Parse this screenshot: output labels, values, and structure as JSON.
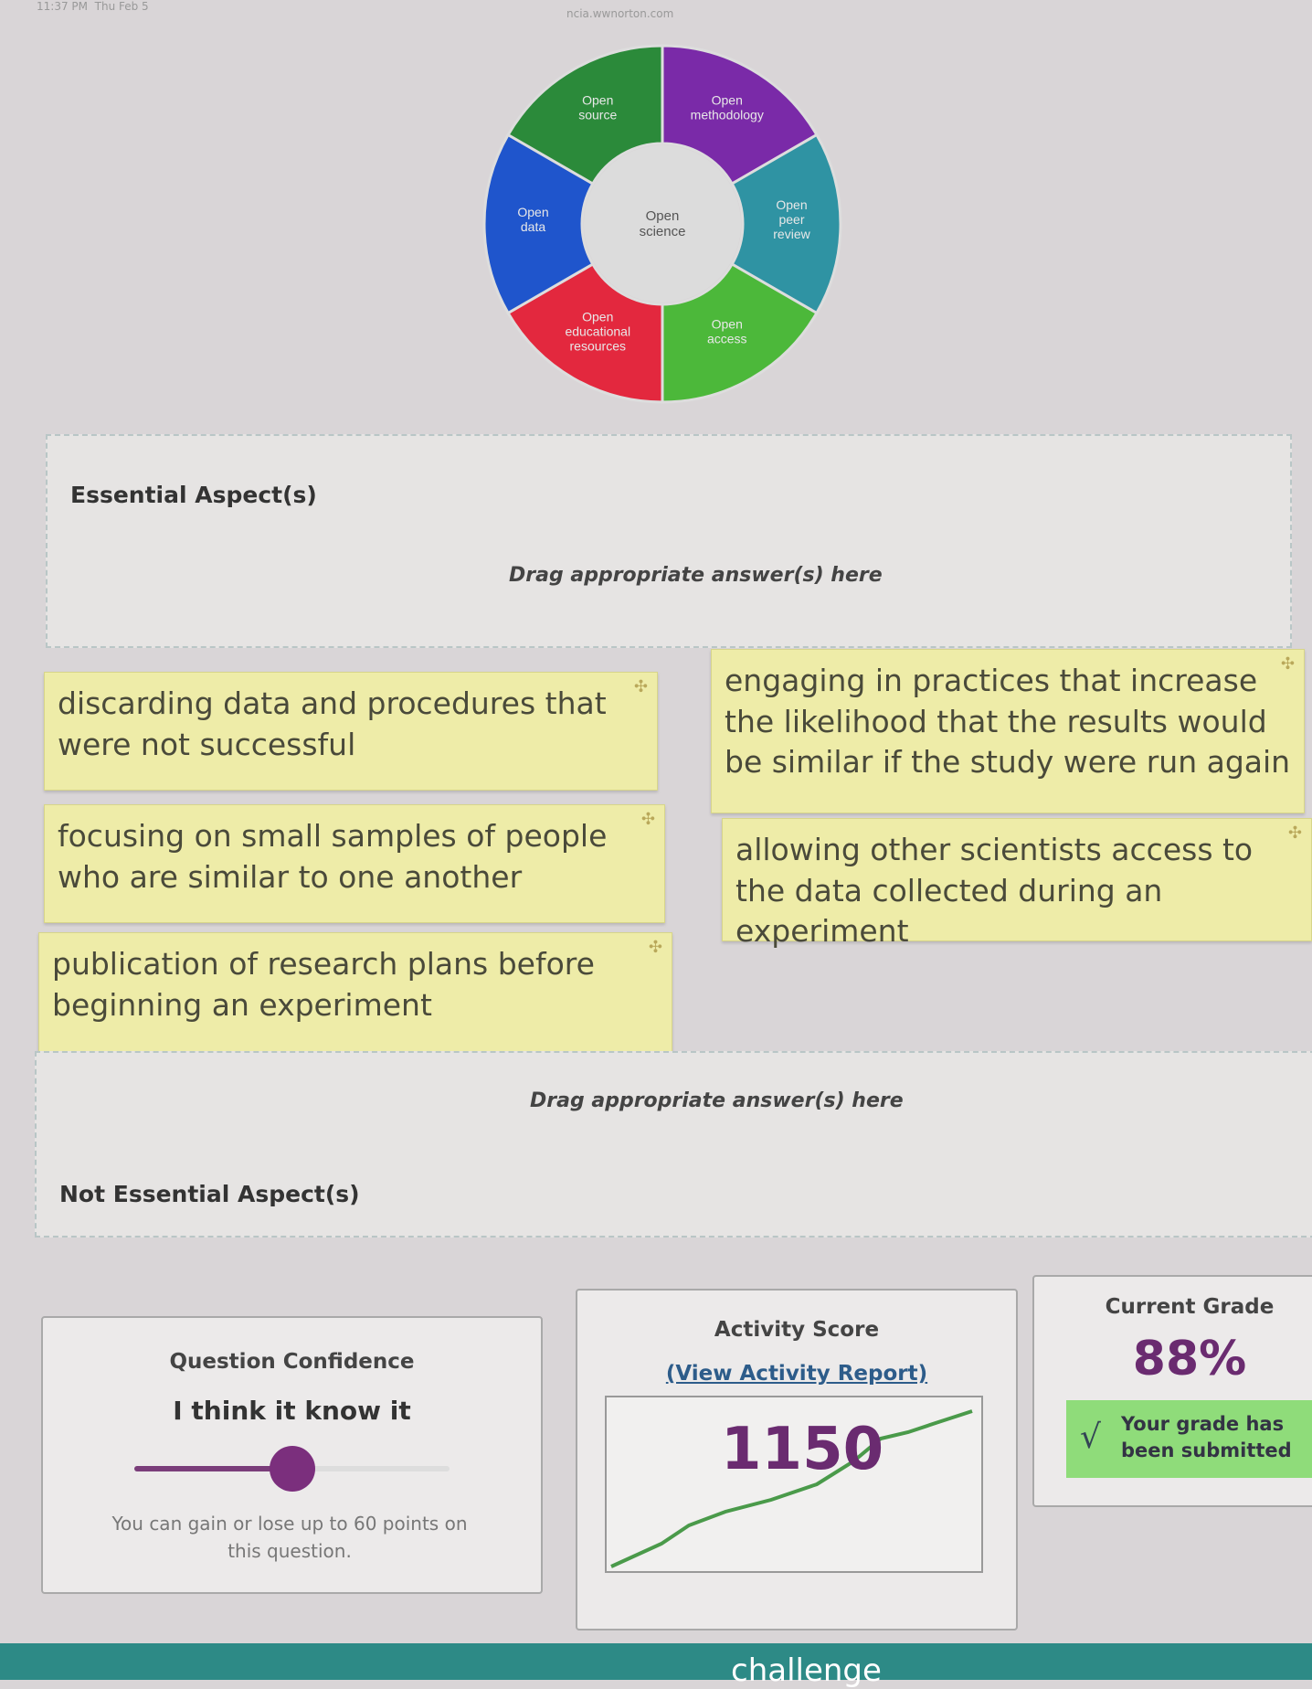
{
  "status_bar": {
    "time": "11:37 PM",
    "date": "Thu Feb 5",
    "url": "ncia.wwnorton.com"
  },
  "diagram": {
    "center": "Open science",
    "segments": [
      {
        "label": "Open methodology",
        "color": "#7a2aa8"
      },
      {
        "label": "Open peer review",
        "color": "#2f93a3"
      },
      {
        "label": "Open access",
        "color": "#4cb83a"
      },
      {
        "label": "Open educational resources",
        "color": "#e3283e"
      },
      {
        "label": "Open data",
        "color": "#1f55cc"
      },
      {
        "label": "Open source",
        "color": "#2b8a3a"
      }
    ]
  },
  "essential_zone": {
    "title": "Essential Aspect(s)",
    "hint": "Drag appropriate answer(s) here"
  },
  "answers": [
    "discarding data and procedures that were not successful",
    "engaging in practices that increase the likelihood that the results would be similar if the study were run again",
    "focusing on small samples of people who are similar to one another",
    "allowing other scientists access to the data collected during an experiment",
    "publication of research plans before beginning an experiment"
  ],
  "not_essential_zone": {
    "title": "Not Essential Aspect(s)",
    "hint": "Drag appropriate answer(s) here"
  },
  "confidence": {
    "title": "Question Confidence",
    "value_label": "I think it know it",
    "slider_value": 0.5,
    "note": "You can gain or lose up to 60 points on this question."
  },
  "activity": {
    "title": "Activity Score",
    "link": "(View Activity Report)",
    "score": "1150"
  },
  "grade": {
    "title": "Current Grade",
    "value": "88%",
    "status": "Your grade has been submitted",
    "check_icon": "check-icon"
  },
  "footer": {
    "text": "challenge"
  }
}
